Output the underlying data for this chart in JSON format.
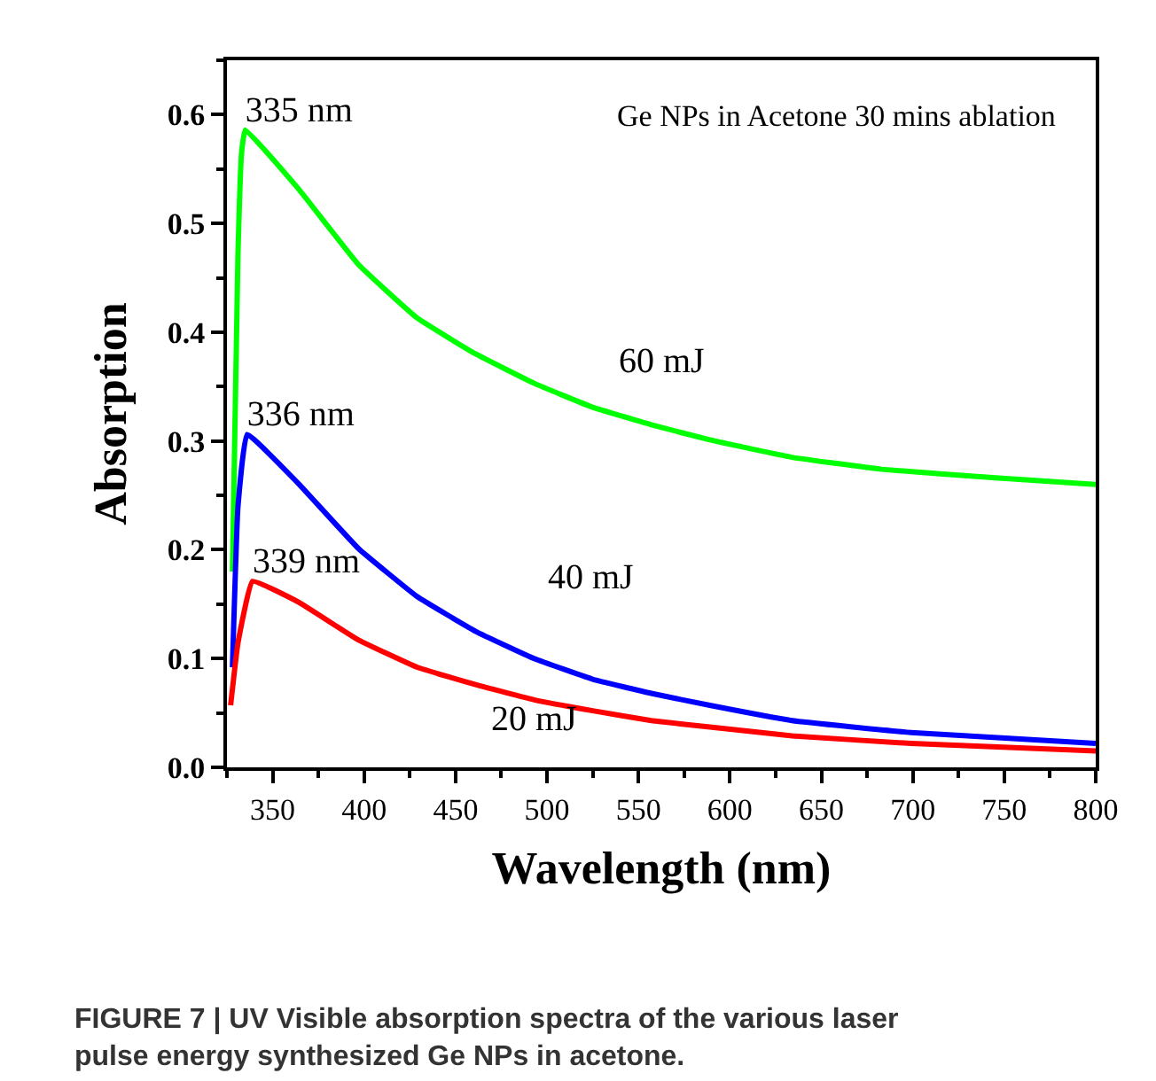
{
  "chart_data": {
    "type": "line",
    "xlabel": "Wavelength (nm)",
    "ylabel": "Absorption",
    "xlim": [
      325,
      800
    ],
    "xticks": [
      350,
      400,
      450,
      500,
      550,
      600,
      650,
      700,
      750,
      800
    ],
    "ylim": [
      0,
      0.65
    ],
    "yticks": [
      {
        "value": 0,
        "label": "0.0"
      },
      0.1,
      0.2,
      0.3,
      0.4,
      0.5,
      0.6
    ],
    "grid": false,
    "legend": false,
    "marker": "none",
    "line_style": "solid",
    "series": [
      {
        "name": "60 mJ",
        "color": "#00ff00",
        "x": [
          328,
          331,
          333,
          335,
          364,
          397,
          429,
          461,
          493,
          525,
          557,
          589,
          634,
          683,
          747,
          800
        ],
        "values": [
          0.18,
          0.47,
          0.565,
          0.586,
          0.532,
          0.462,
          0.413,
          0.38,
          0.353,
          0.331,
          0.315,
          0.301,
          0.285,
          0.274,
          0.266,
          0.26
        ]
      },
      {
        "name": "40 mJ",
        "color": "#0000ff",
        "x": [
          328,
          331,
          336,
          364,
          397,
          429,
          461,
          493,
          525,
          557,
          589,
          634,
          699,
          800
        ],
        "values": [
          0.092,
          0.239,
          0.306,
          0.261,
          0.201,
          0.157,
          0.125,
          0.1,
          0.081,
          0.068,
          0.057,
          0.043,
          0.032,
          0.022
        ]
      },
      {
        "name": "20 mJ",
        "color": "#ff0000",
        "x": [
          327,
          331,
          339,
          364,
          397,
          429,
          461,
          493,
          525,
          557,
          589,
          634,
          699,
          800
        ],
        "values": [
          0.057,
          0.114,
          0.171,
          0.152,
          0.117,
          0.092,
          0.076,
          0.062,
          0.052,
          0.043,
          0.037,
          0.029,
          0.022,
          0.015
        ]
      }
    ],
    "annotations": [
      {
        "text": "335 nm",
        "x": 335,
        "y": 0.586
      },
      {
        "text": "336 nm",
        "x": 336,
        "y": 0.306
      },
      {
        "text": "339 nm",
        "x": 339,
        "y": 0.171
      },
      "Ge NPs in Acetone 30 mins ablation",
      "FIGURE 7 | UV Visible absorption spectra of the various laser pulse energy synthesized Ge NPs in acetone."
    ]
  }
}
